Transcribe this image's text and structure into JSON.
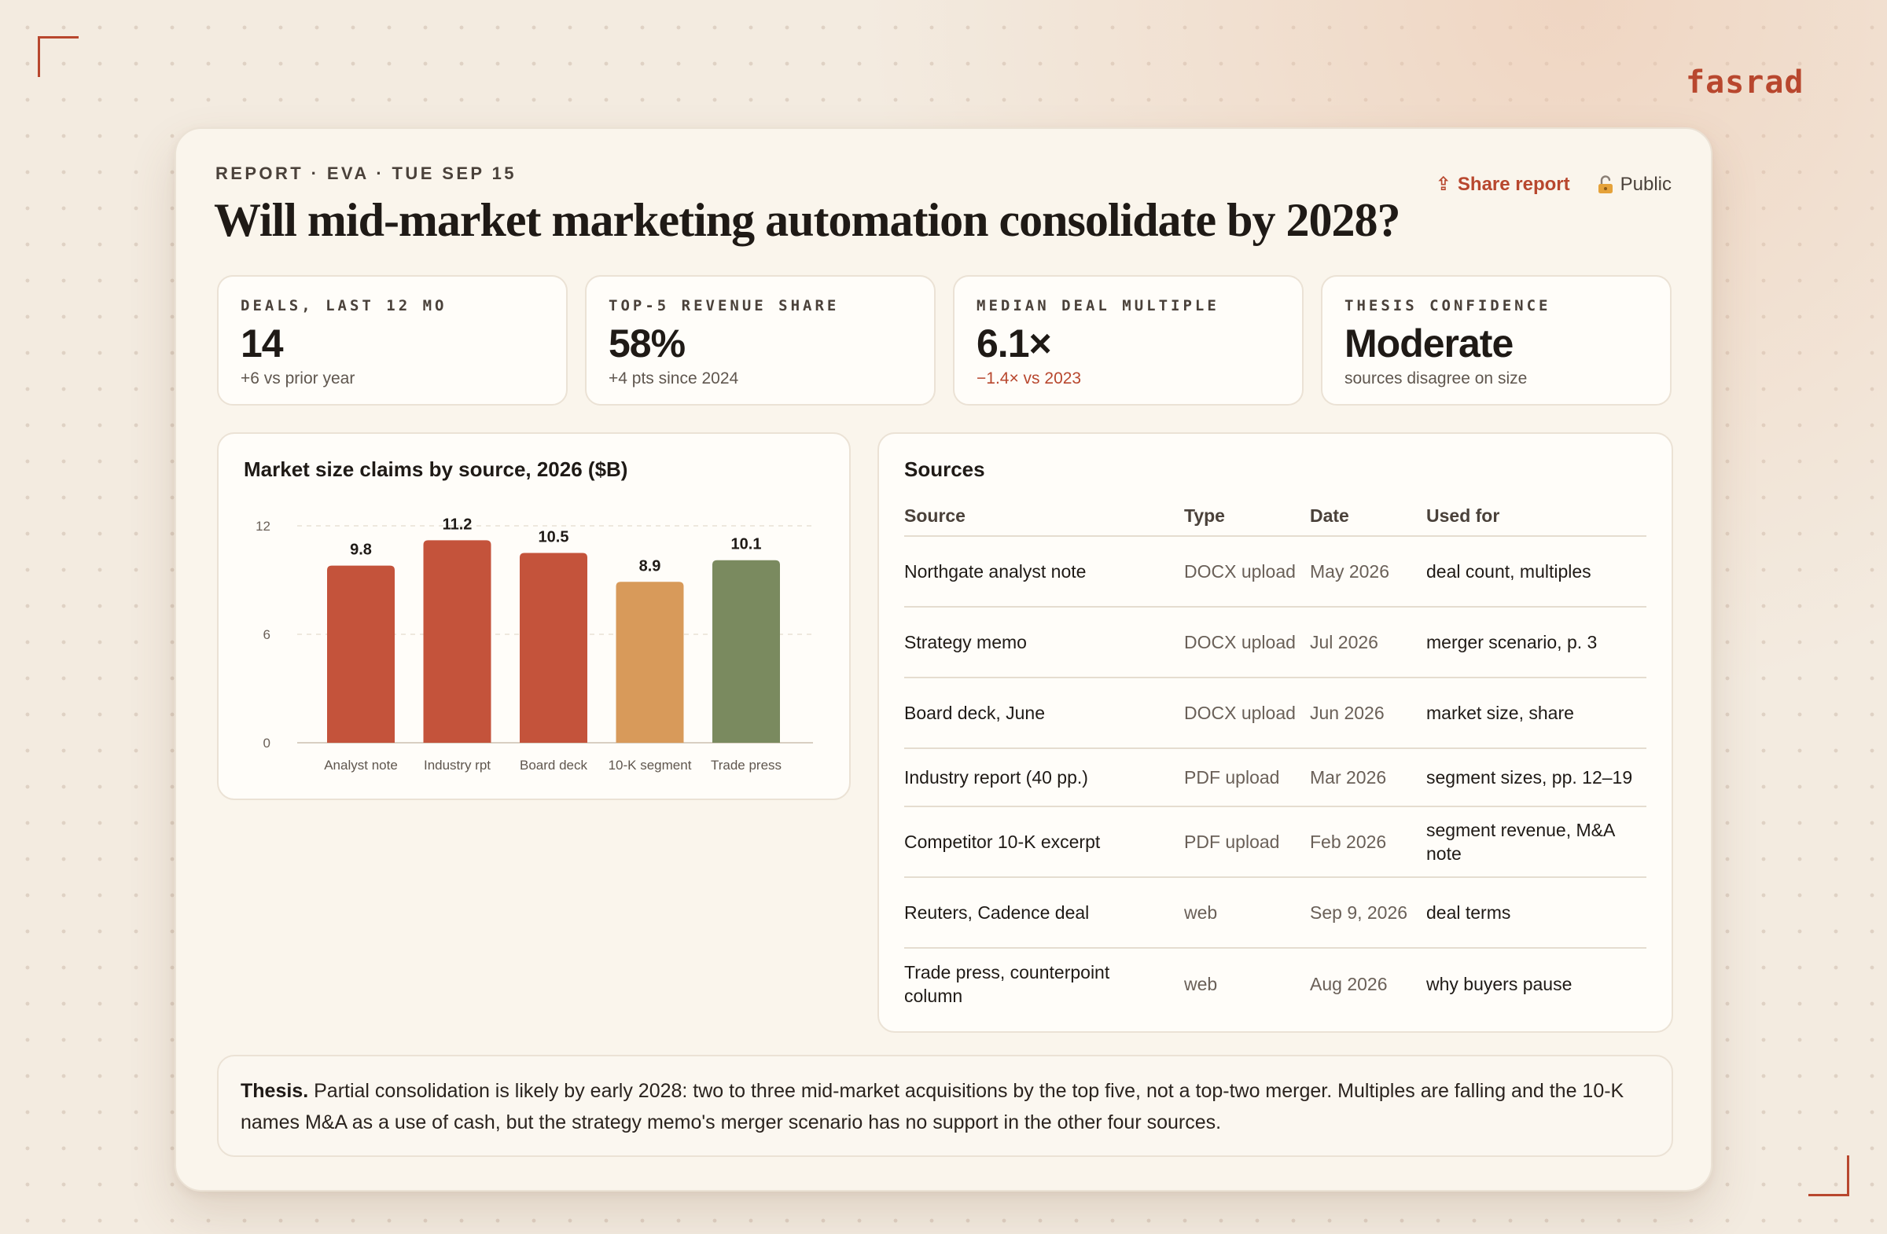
{
  "brand": "fasrad",
  "header": {
    "kicker": "REPORT · EVA · TUE SEP 15",
    "title": "Will mid-market marketing automation consolidate by 2028?",
    "share_label": "Share report",
    "share_icon": "⇪",
    "visibility_label": "Public"
  },
  "kpis": [
    {
      "label": "Deals, last 12 mo",
      "value": "14",
      "sub": "+6 vs prior year"
    },
    {
      "label": "Top-5 revenue share",
      "value": "58%",
      "sub": "+4 pts since 2024"
    },
    {
      "label": "Median deal multiple",
      "value": "6.1×",
      "sub": "−1.4× vs 2023"
    },
    {
      "label": "Thesis confidence",
      "value": "Moderate",
      "sub": "sources disagree on size"
    }
  ],
  "colors": {
    "accent": "#b8472e",
    "bar_red": "#c4533b",
    "bar_orange": "#d89a5a",
    "bar_green": "#7a8a5f",
    "negative": "#b8472e"
  },
  "chart_data": {
    "type": "bar",
    "title": "Market size claims by source, 2026 ($B)",
    "categories": [
      "Analyst note",
      "Industry rpt",
      "Board deck",
      "10-K segment",
      "Trade press"
    ],
    "values": [
      9.8,
      11.2,
      10.5,
      8.9,
      10.1
    ],
    "bar_colors": [
      "#c4533b",
      "#c4533b",
      "#c4533b",
      "#d89a5a",
      "#7a8a5f"
    ],
    "ylim": [
      0,
      12
    ],
    "yticks": [
      0,
      6,
      12
    ],
    "grid": true,
    "xlabel": "",
    "ylabel": ""
  },
  "sources": {
    "title": "Sources",
    "columns": [
      "Source",
      "Type",
      "Date",
      "Used for"
    ],
    "rows": [
      [
        "Northgate analyst note",
        "DOCX upload",
        "May 2026",
        "deal count, multiples"
      ],
      [
        "Strategy memo",
        "DOCX upload",
        "Jul 2026",
        "merger scenario, p. 3"
      ],
      [
        "Board deck, June",
        "DOCX upload",
        "Jun 2026",
        "market size, share"
      ],
      [
        "Industry report (40 pp.)",
        "PDF upload",
        "Mar 2026",
        "segment sizes, pp. 12–19"
      ],
      [
        "Competitor 10-K excerpt",
        "PDF upload",
        "Feb 2026",
        "segment revenue, M&A note"
      ],
      [
        "Reuters, Cadence deal",
        "web",
        "Sep 9, 2026",
        "deal terms"
      ],
      [
        "Trade press, counterpoint column",
        "web",
        "Aug 2026",
        "why buyers pause"
      ]
    ]
  },
  "thesis": {
    "lead": "Thesis.",
    "text": "Partial consolidation is likely by early 2028: two to three mid-market acquisitions by the top five, not a top-two merger. Multiples are falling and the 10-K names M&A as a use of cash, but the strategy memo's merger scenario has no support in the other four sources."
  }
}
